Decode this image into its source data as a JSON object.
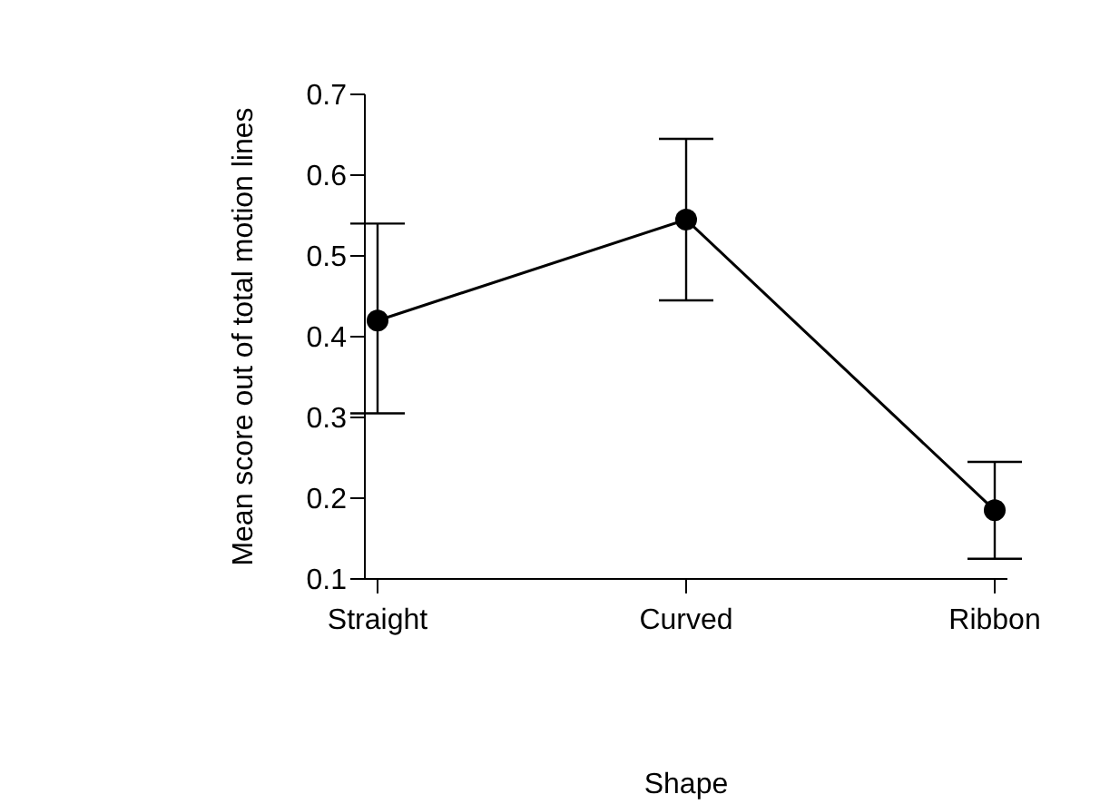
{
  "chart_data": {
    "type": "line",
    "xlabel": "Shape",
    "ylabel": "Mean score out of total motion lines",
    "categories": [
      "Straight",
      "Curved",
      "Ribbon"
    ],
    "series": [
      {
        "color": "#000000",
        "values": [
          0.42,
          0.545,
          0.185
        ],
        "errors": [
          [
            0.305,
            0.54
          ],
          0.1,
          0.06
        ]
      }
    ],
    "ylim": [
      0.1,
      0.7
    ],
    "yticks": [
      0.1,
      0.2,
      0.3,
      0.4,
      0.5,
      0.6,
      0.7
    ],
    "marker": "circle",
    "line_style": "solid",
    "grid": false,
    "legend": false
  }
}
